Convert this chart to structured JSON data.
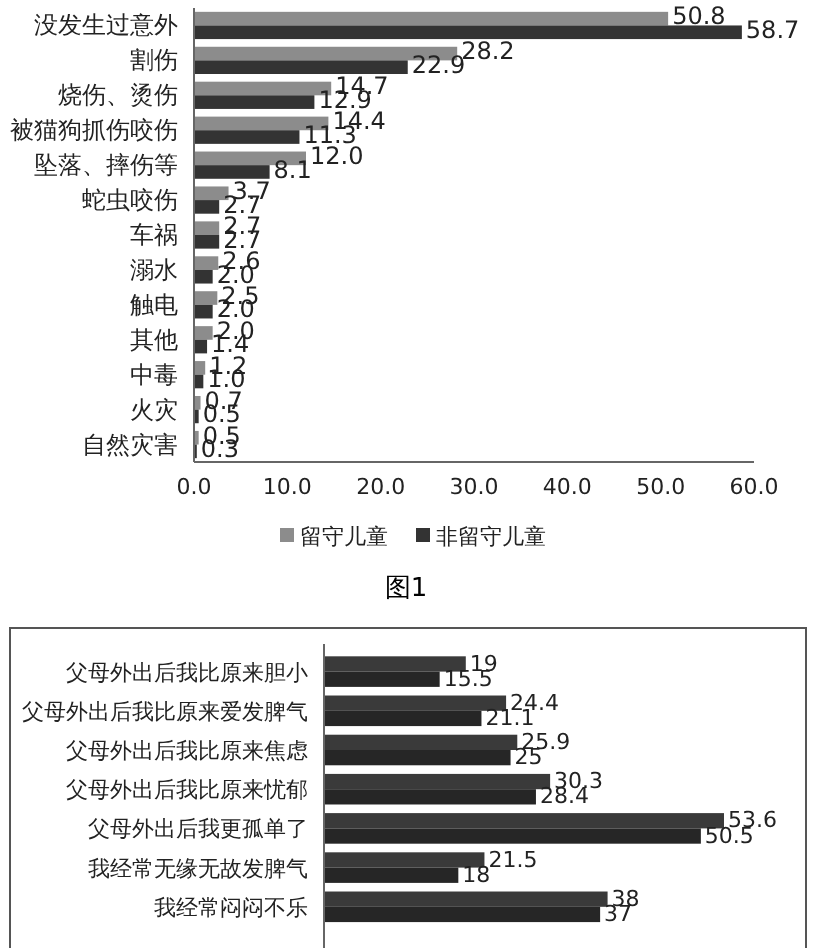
{
  "chart_data": [
    {
      "type": "bar",
      "orientation": "horizontal",
      "categories": [
        "没发生过意外",
        "割伤",
        "烧伤、烫伤",
        "被猫狗抓伤咬伤",
        "坠落、摔伤等",
        "蛇虫咬伤",
        "车祸",
        "溺水",
        "触电",
        "其他",
        "中毒",
        "火灾",
        "自然灾害"
      ],
      "series": [
        {
          "name": "留守儿童",
          "color": "#8c8c8c",
          "values": [
            50.8,
            28.2,
            14.7,
            14.4,
            12.0,
            3.7,
            2.7,
            2.6,
            2.5,
            2.0,
            1.2,
            0.7,
            0.5
          ],
          "value_labels": [
            "50.8",
            "28.2",
            "14.7",
            "14.4",
            "12.0",
            "3.7",
            "2.7",
            "2.6",
            "2.5",
            "2.0",
            "1.2",
            "0.7",
            "0.5"
          ]
        },
        {
          "name": "非留守儿童",
          "color": "#333333",
          "values": [
            58.7,
            22.9,
            12.9,
            11.3,
            8.1,
            2.7,
            2.7,
            2.0,
            2.0,
            1.4,
            1.0,
            0.5,
            0.3
          ],
          "value_labels": [
            "58.7",
            "22.9",
            "12.9",
            "11.3",
            "8.1",
            "2.7",
            "2.7",
            "2.0",
            "2.0",
            "1.4",
            "1.0",
            "0.5",
            "0.3"
          ]
        }
      ],
      "xlim": [
        0,
        60
      ],
      "xticks": [
        {
          "value": 0,
          "label": "0.0"
        },
        {
          "value": 10,
          "label": "10.0"
        },
        {
          "value": 20,
          "label": "20.0"
        },
        {
          "value": 30,
          "label": "30.0"
        },
        {
          "value": 40,
          "label": "40.0"
        },
        {
          "value": 50,
          "label": "50.0"
        },
        {
          "value": 60,
          "label": "60.0"
        }
      ],
      "legend": "bottom",
      "grid": false,
      "annotations": [
        "图1"
      ]
    },
    {
      "type": "bar",
      "orientation": "horizontal",
      "categories": [
        "父母外出后我比原来胆小",
        "父母外出后我比原来爱发脾气",
        "父母外出后我比原来焦虑",
        "父母外出后我比原来忧郁",
        "父母外出后我更孤单了",
        "我经常无缘无故发脾气",
        "我经常闷闷不乐"
      ],
      "series": [
        {
          "color": "#3a3a3a",
          "values": [
            19,
            24.4,
            25.9,
            30.3,
            53.6,
            21.5,
            38
          ]
        },
        {
          "color": "#262626",
          "values": [
            15.5,
            21.1,
            25,
            28.4,
            50.5,
            18,
            37
          ]
        }
      ],
      "data_labels": true,
      "legend": false,
      "grid": false,
      "tick_labels": "y"
    }
  ]
}
